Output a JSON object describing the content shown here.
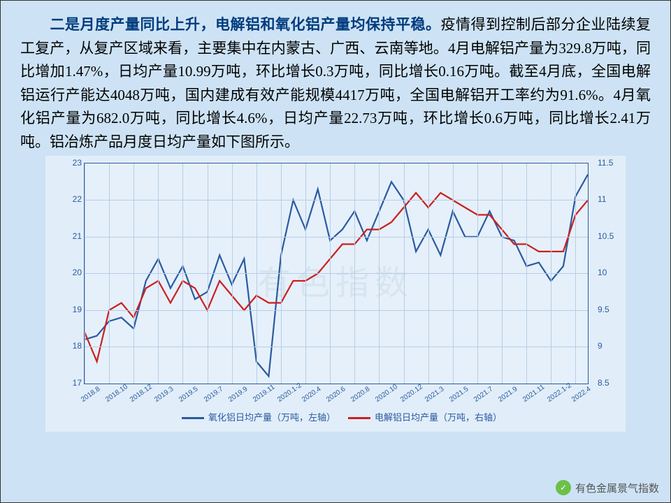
{
  "text": {
    "bold": "二是月度产量同比上升，电解铝和氧化铝产量均保持平稳。",
    "body": "疫情得到控制后部分企业陆续复工复产，从复产区域来看，主要集中在内蒙古、广西、云南等地。4月电解铝产量为329.8万吨，同比增加1.47%，日均产量10.99万吨，环比增长0.3万吨，同比增长0.16万吨。截至4月底，全国电解铝运行产能达4048万吨，国内建成有效产能规模4417万吨，全国电解铝开工率约为91.6%。4月氧化铝产量为682.0万吨，同比增长4.6%，日均产量22.73万吨，环比增长0.6万吨，同比增长2.41万吨。铝冶炼产品月度日均产量如下图所示。"
  },
  "chart": {
    "plot_border_color": "#2b5aa0",
    "grid_color": "#b7cde6",
    "background": "#cde3f5",
    "left_axis": {
      "min": 17,
      "max": 23,
      "step": 1,
      "label_fontsize": 12,
      "color": "#2b5aa0"
    },
    "right_axis": {
      "min": 8.5,
      "max": 11.5,
      "step": 0.5,
      "label_fontsize": 12,
      "color": "#2b5aa0"
    },
    "x_labels": [
      "2018.8",
      "2018.10",
      "2018.12",
      "2019.3",
      "2019.5",
      "2019.7",
      "2019.9",
      "2019.11",
      "2020.1-2",
      "2020.4",
      "2020.6",
      "2020.8",
      "2020.10",
      "2020.12",
      "2021.3",
      "2021.5",
      "2021.7",
      "2021.9",
      "2021.11",
      "2022.1-2",
      "2022.4"
    ],
    "series": [
      {
        "name": "氧化铝日均产量（万吨，左轴）",
        "axis": "left",
        "color": "#2b5aa0",
        "width": 2.2,
        "values": [
          18.2,
          18.3,
          18.7,
          18.8,
          18.5,
          19.8,
          20.4,
          19.6,
          20.2,
          19.3,
          19.5,
          20.5,
          19.7,
          20.4,
          17.6,
          17.2,
          20.5,
          22.0,
          21.2,
          22.3,
          20.9,
          21.2,
          21.7,
          20.9,
          21.7,
          22.5,
          22.0,
          20.6,
          21.2,
          20.5,
          21.7,
          21.0,
          21.0,
          21.7,
          21.0,
          20.9,
          20.2,
          20.3,
          19.8,
          20.2,
          22.1,
          22.7
        ]
      },
      {
        "name": "电解铝日均产量（万吨，右轴）",
        "axis": "right",
        "color": "#cc1f1f",
        "width": 2.2,
        "values": [
          9.2,
          8.8,
          9.5,
          9.6,
          9.4,
          9.8,
          9.9,
          9.6,
          9.9,
          9.8,
          9.5,
          9.9,
          9.7,
          9.5,
          9.7,
          9.6,
          9.6,
          9.9,
          9.9,
          10.0,
          10.2,
          10.4,
          10.4,
          10.6,
          10.6,
          10.7,
          10.9,
          11.1,
          10.9,
          11.1,
          11.0,
          10.9,
          10.8,
          10.8,
          10.6,
          10.4,
          10.4,
          10.3,
          10.3,
          10.3,
          10.8,
          11.0
        ]
      }
    ],
    "legend_fontsize": 13,
    "x_fontsize": 10,
    "bg_watermark": "有色指数"
  },
  "footer": {
    "source": "有色金属景气指数"
  }
}
